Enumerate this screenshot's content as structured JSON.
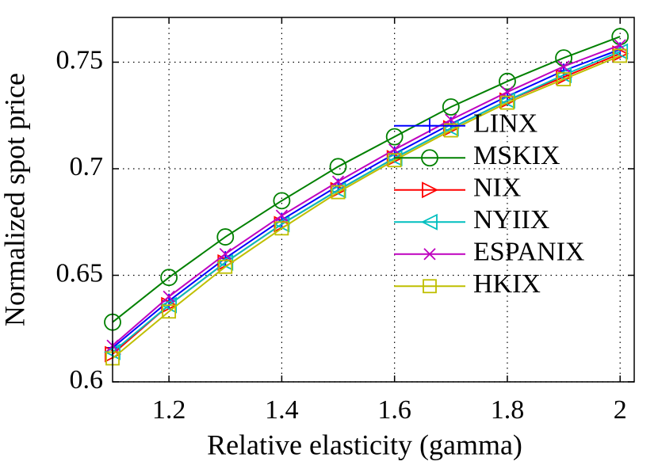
{
  "chart_data": {
    "type": "line",
    "xlabel": "Relative elasticity (gamma)",
    "ylabel": "Normalized spot price",
    "x": [
      1.1,
      1.2,
      1.3,
      1.4,
      1.5,
      1.6,
      1.7,
      1.8,
      1.9,
      2
    ],
    "series": [
      {
        "name": "LINX",
        "color": "#0000ff",
        "marker": "plus",
        "values": [
          0.616,
          0.638,
          0.658,
          0.676,
          0.692,
          0.707,
          0.721,
          0.734,
          0.746,
          0.756
        ]
      },
      {
        "name": "MSKIX",
        "color": "#008000",
        "marker": "circle",
        "values": [
          0.628,
          0.649,
          0.668,
          0.685,
          0.701,
          0.715,
          0.729,
          0.741,
          0.752,
          0.762
        ]
      },
      {
        "name": "NIX",
        "color": "#ff0000",
        "marker": "triangle-right",
        "values": [
          0.613,
          0.636,
          0.656,
          0.674,
          0.69,
          0.705,
          0.719,
          0.732,
          0.743,
          0.754
        ]
      },
      {
        "name": "NYIIX",
        "color": "#00bfbf",
        "marker": "triangle-left",
        "values": [
          0.614,
          0.636,
          0.656,
          0.674,
          0.69,
          0.705,
          0.719,
          0.732,
          0.744,
          0.755
        ]
      },
      {
        "name": "ESPANIX",
        "color": "#bf00bf",
        "marker": "x",
        "values": [
          0.617,
          0.64,
          0.66,
          0.678,
          0.694,
          0.709,
          0.723,
          0.736,
          0.748,
          0.758
        ]
      },
      {
        "name": "HKIX",
        "color": "#bfbf00",
        "marker": "square",
        "values": [
          0.611,
          0.633,
          0.654,
          0.672,
          0.689,
          0.704,
          0.718,
          0.731,
          0.742,
          0.753
        ]
      }
    ],
    "xlim": [
      1.1,
      2.025
    ],
    "ylim": [
      0.6,
      0.771
    ],
    "xticks": [
      1.2,
      1.4,
      1.6,
      1.8,
      2
    ],
    "yticks": [
      0.6,
      0.65,
      0.7,
      0.75
    ],
    "grid": true,
    "legend": "right"
  }
}
